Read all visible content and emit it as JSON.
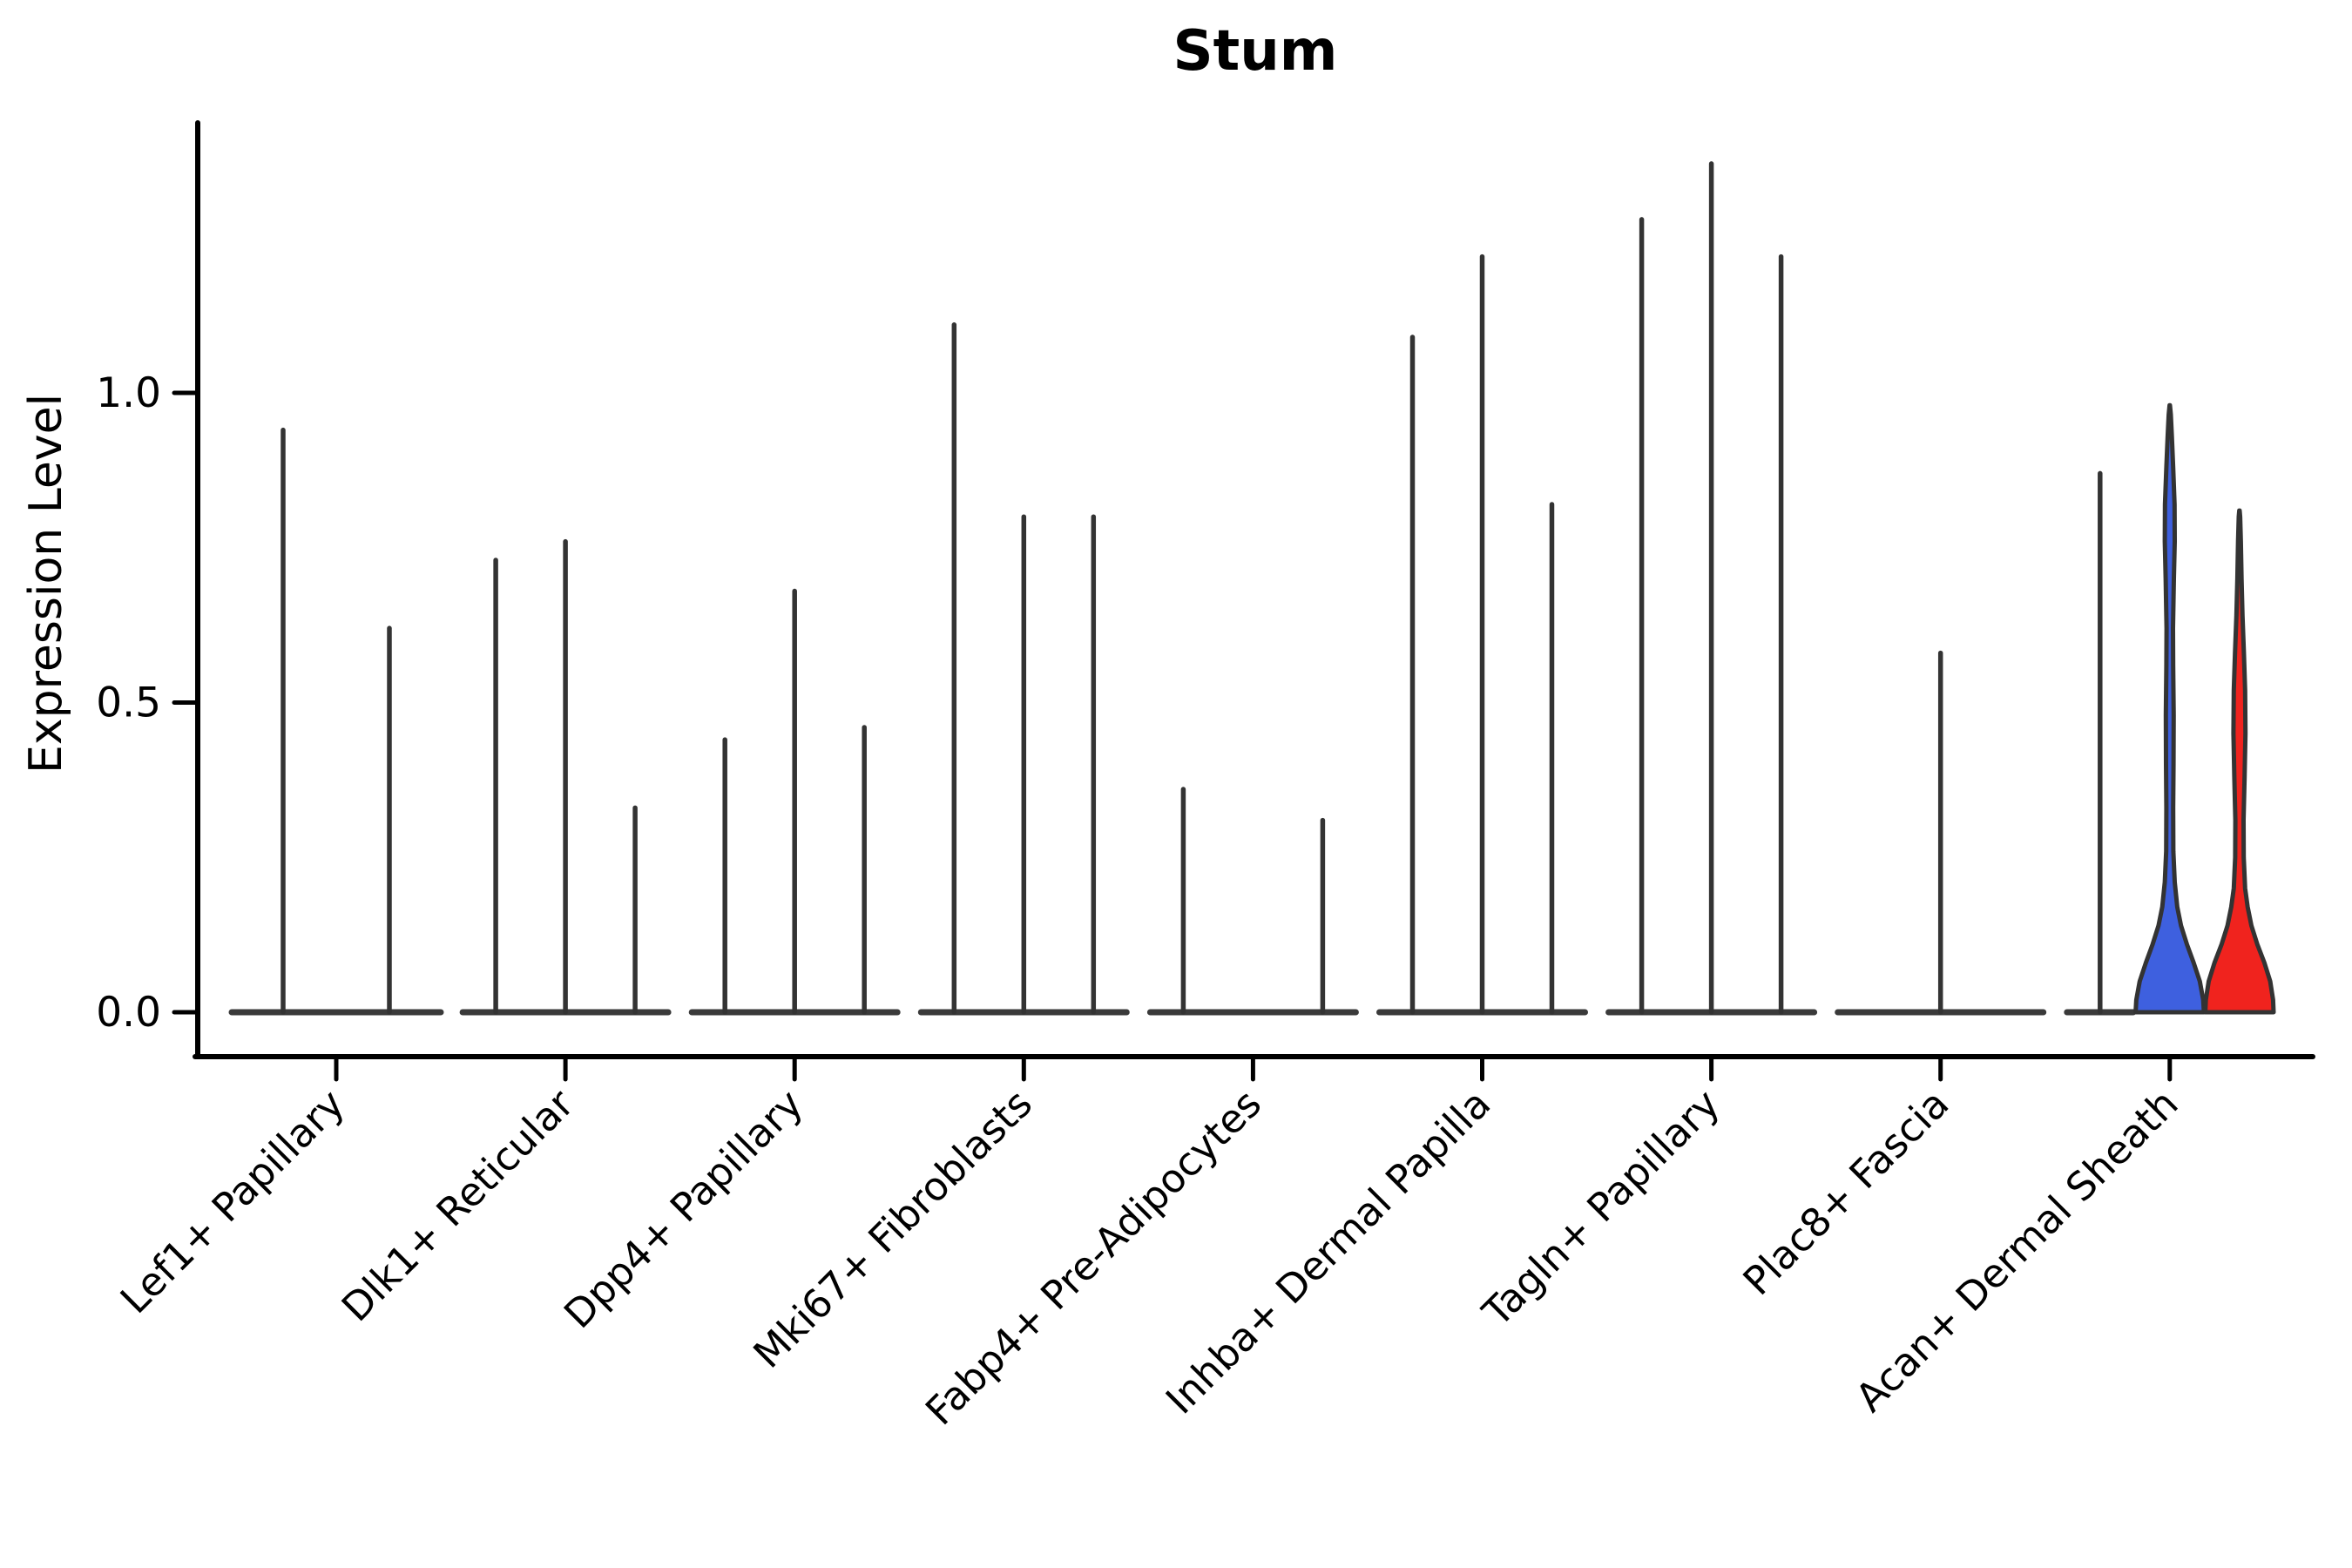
{
  "figure": {
    "background": "#ffffff",
    "title": "Stum",
    "ylabel": "Expression Level"
  },
  "chart_data": {
    "type": "violin",
    "title": "Stum",
    "xlabel": "",
    "ylabel": "Expression Level",
    "yticks": [
      0.0,
      0.5,
      1.0
    ],
    "ytick_labels": [
      "0.0",
      "0.5",
      "1.0"
    ],
    "ylim": [
      0,
      1.44
    ],
    "grid": false,
    "legend": "none",
    "x_label_rotation_deg": 45,
    "stroke_color": "#333333",
    "baseline_color": "#3a3a3a",
    "categories": [
      "Lef1+ Papillary",
      "Dlk1+ Reticular",
      "Dpp4+ Papillary",
      "Mki67+ Fibroblasts",
      "Fabp4+ Pre-Adipocytes",
      "Inhba+ Dermal Papilla",
      "Tagln+ Papillary",
      "Plac8+ Fascia",
      "Acan+ Dermal Sheath"
    ],
    "groups": [
      {
        "category": "Lef1+ Papillary",
        "violins": [
          {
            "max": 0.94,
            "style": "spike"
          },
          {
            "max": 0.62,
            "style": "spike"
          }
        ]
      },
      {
        "category": "Dlk1+ Reticular",
        "violins": [
          {
            "max": 0.73,
            "style": "spike"
          },
          {
            "max": 0.76,
            "style": "spike"
          },
          {
            "max": 0.33,
            "style": "spike"
          }
        ]
      },
      {
        "category": "Dpp4+ Papillary",
        "violins": [
          {
            "max": 0.44,
            "style": "spike"
          },
          {
            "max": 0.68,
            "style": "spike"
          },
          {
            "max": 0.46,
            "style": "spike"
          }
        ]
      },
      {
        "category": "Mki67+ Fibroblasts",
        "violins": [
          {
            "max": 1.11,
            "style": "spike"
          },
          {
            "max": 0.8,
            "style": "spike"
          },
          {
            "max": 0.8,
            "style": "spike"
          }
        ]
      },
      {
        "category": "Fabp4+ Pre-Adipocytes",
        "violins": [
          {
            "max": 0.36,
            "style": "spike"
          },
          {
            "max": 0.0,
            "style": "flat"
          },
          {
            "max": 0.31,
            "style": "spike"
          }
        ]
      },
      {
        "category": "Inhba+ Dermal Papilla",
        "violins": [
          {
            "max": 1.09,
            "style": "spike"
          },
          {
            "max": 1.22,
            "style": "spike"
          },
          {
            "max": 0.82,
            "style": "spike"
          }
        ]
      },
      {
        "category": "Tagln+ Papillary",
        "violins": [
          {
            "max": 1.28,
            "style": "spike"
          },
          {
            "max": 1.37,
            "style": "spike"
          },
          {
            "max": 1.22,
            "style": "spike"
          }
        ]
      },
      {
        "category": "Plac8+ Fascia",
        "violins": [
          {
            "max": 0.0,
            "style": "flat"
          },
          {
            "max": 0.58,
            "style": "spike"
          },
          {
            "max": 0.0,
            "style": "flat"
          }
        ]
      },
      {
        "category": "Acan+ Dermal Sheath",
        "violins": [
          {
            "max": 0.87,
            "style": "spike"
          },
          {
            "max": 0.98,
            "style": "filled",
            "fill": "#3E60DF",
            "profile": [
              [
                0,
                1.0
              ],
              [
                0.02,
                0.98
              ],
              [
                0.05,
                0.88
              ],
              [
                0.08,
                0.7
              ],
              [
                0.11,
                0.5
              ],
              [
                0.14,
                0.33
              ],
              [
                0.17,
                0.22
              ],
              [
                0.21,
                0.145
              ],
              [
                0.26,
                0.105
              ],
              [
                0.33,
                0.1
              ],
              [
                0.4,
                0.11
              ],
              [
                0.48,
                0.115
              ],
              [
                0.56,
                0.1
              ],
              [
                0.62,
                0.095
              ],
              [
                0.7,
                0.12
              ],
              [
                0.76,
                0.145
              ],
              [
                0.82,
                0.14
              ],
              [
                0.88,
                0.1
              ],
              [
                0.93,
                0.06
              ],
              [
                0.965,
                0.03
              ],
              [
                0.98,
                0.004
              ]
            ]
          },
          {
            "max": 0.81,
            "style": "filled",
            "fill": "#F0231E",
            "profile": [
              [
                0,
                1.0
              ],
              [
                0.02,
                0.985
              ],
              [
                0.05,
                0.9
              ],
              [
                0.08,
                0.73
              ],
              [
                0.11,
                0.52
              ],
              [
                0.14,
                0.35
              ],
              [
                0.17,
                0.24
              ],
              [
                0.2,
                0.165
              ],
              [
                0.25,
                0.125
              ],
              [
                0.31,
                0.12
              ],
              [
                0.38,
                0.15
              ],
              [
                0.45,
                0.175
              ],
              [
                0.52,
                0.165
              ],
              [
                0.58,
                0.13
              ],
              [
                0.64,
                0.09
              ],
              [
                0.7,
                0.06
              ],
              [
                0.76,
                0.04
              ],
              [
                0.8,
                0.02
              ],
              [
                0.81,
                0.004
              ]
            ]
          }
        ]
      }
    ]
  }
}
